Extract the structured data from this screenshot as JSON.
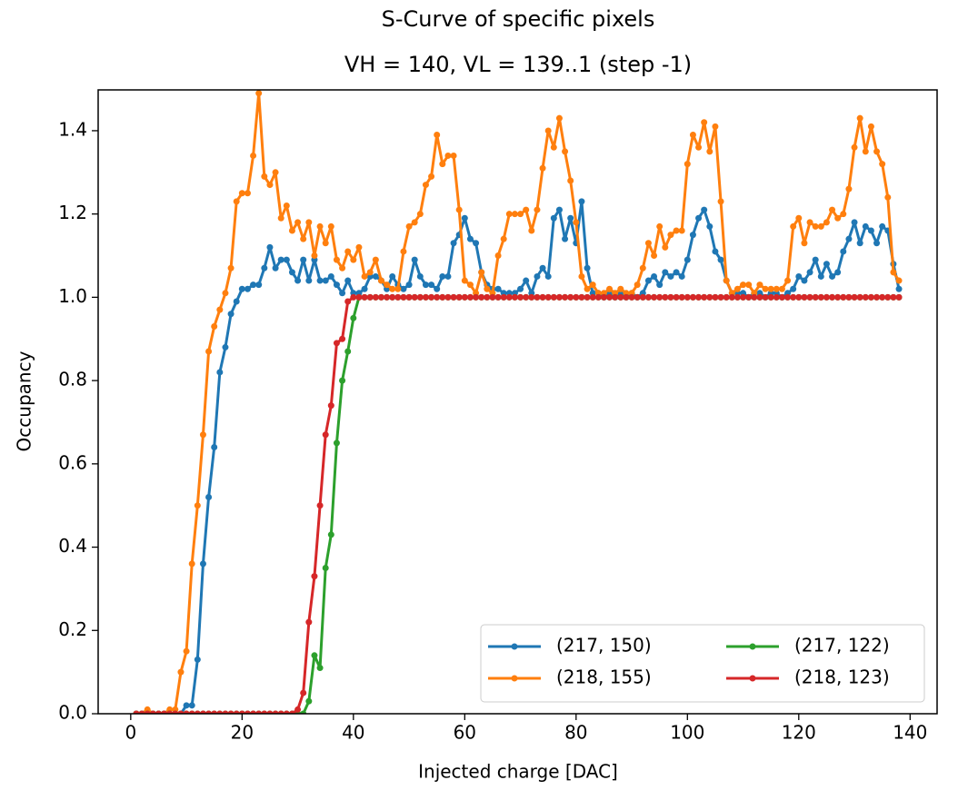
{
  "chart_data": {
    "type": "line",
    "title": "S-Curve of specific pixels",
    "subtitle": "VH = 140, VL = 139..1 (step -1)",
    "x_label": "Injected charge [DAC]",
    "y_label": "Occupancy",
    "x": [
      1,
      2,
      3,
      4,
      5,
      6,
      7,
      8,
      9,
      10,
      11,
      12,
      13,
      14,
      15,
      16,
      17,
      18,
      19,
      20,
      21,
      22,
      23,
      24,
      25,
      26,
      27,
      28,
      29,
      30,
      31,
      32,
      33,
      34,
      35,
      36,
      37,
      38,
      39,
      40,
      41,
      42,
      43,
      44,
      45,
      46,
      47,
      48,
      49,
      50,
      51,
      52,
      53,
      54,
      55,
      56,
      57,
      58,
      59,
      60,
      61,
      62,
      63,
      64,
      65,
      66,
      67,
      68,
      69,
      70,
      71,
      72,
      73,
      74,
      75,
      76,
      77,
      78,
      79,
      80,
      81,
      82,
      83,
      84,
      85,
      86,
      87,
      88,
      89,
      90,
      91,
      92,
      93,
      94,
      95,
      96,
      97,
      98,
      99,
      100,
      101,
      102,
      103,
      104,
      105,
      106,
      107,
      108,
      109,
      110,
      111,
      112,
      113,
      114,
      115,
      116,
      117,
      118,
      119,
      120,
      121,
      122,
      123,
      124,
      125,
      126,
      127,
      128,
      129,
      130,
      131,
      132,
      133,
      134,
      135,
      136,
      137,
      138
    ],
    "series": [
      {
        "name": "(217, 150)",
        "color": "#1f77b4",
        "values": [
          0,
          0,
          0,
          0,
          0,
          0,
          0,
          0,
          0,
          0.02,
          0.02,
          0.13,
          0.36,
          0.52,
          0.64,
          0.82,
          0.88,
          0.96,
          0.99,
          1.02,
          1.02,
          1.03,
          1.03,
          1.07,
          1.12,
          1.07,
          1.09,
          1.09,
          1.06,
          1.04,
          1.09,
          1.04,
          1.09,
          1.04,
          1.04,
          1.05,
          1.03,
          1.01,
          1.04,
          1.01,
          1.01,
          1.02,
          1.05,
          1.05,
          1.04,
          1.02,
          1.05,
          1.03,
          1.02,
          1.03,
          1.09,
          1.05,
          1.03,
          1.03,
          1.02,
          1.05,
          1.05,
          1.13,
          1.15,
          1.19,
          1.14,
          1.13,
          1.06,
          1.03,
          1.02,
          1.02,
          1.01,
          1.01,
          1.01,
          1.02,
          1.04,
          1.01,
          1.05,
          1.07,
          1.05,
          1.19,
          1.21,
          1.14,
          1.19,
          1.13,
          1.23,
          1.07,
          1.01,
          1.01,
          1,
          1.01,
          1,
          1.01,
          1,
          1.01,
          1,
          1.01,
          1.04,
          1.05,
          1.03,
          1.06,
          1.05,
          1.06,
          1.05,
          1.09,
          1.15,
          1.19,
          1.21,
          1.17,
          1.11,
          1.09,
          1.04,
          1.01,
          1.01,
          1.01,
          1,
          1.01,
          1.01,
          1,
          1.01,
          1.01,
          1,
          1.01,
          1.02,
          1.05,
          1.04,
          1.06,
          1.09,
          1.05,
          1.08,
          1.05,
          1.06,
          1.11,
          1.14,
          1.18,
          1.13,
          1.17,
          1.16,
          1.13,
          1.17,
          1.16,
          1.08,
          1.02
        ]
      },
      {
        "name": "(218, 155)",
        "color": "#ff7f0e",
        "values": [
          0,
          0,
          0.01,
          0,
          0,
          0,
          0.01,
          0.01,
          0.1,
          0.15,
          0.36,
          0.5,
          0.67,
          0.87,
          0.93,
          0.97,
          1.01,
          1.07,
          1.23,
          1.25,
          1.25,
          1.34,
          1.49,
          1.29,
          1.27,
          1.3,
          1.19,
          1.22,
          1.16,
          1.18,
          1.14,
          1.18,
          1.1,
          1.17,
          1.13,
          1.17,
          1.09,
          1.07,
          1.11,
          1.09,
          1.12,
          1.05,
          1.06,
          1.09,
          1.04,
          1.03,
          1.02,
          1.02,
          1.11,
          1.17,
          1.18,
          1.2,
          1.27,
          1.29,
          1.39,
          1.32,
          1.34,
          1.34,
          1.21,
          1.04,
          1.03,
          1.01,
          1.06,
          1.02,
          1.01,
          1.1,
          1.14,
          1.2,
          1.2,
          1.2,
          1.21,
          1.16,
          1.21,
          1.31,
          1.4,
          1.36,
          1.43,
          1.35,
          1.28,
          1.18,
          1.05,
          1.02,
          1.03,
          1.01,
          1.01,
          1.02,
          1.01,
          1.02,
          1.01,
          1.01,
          1.03,
          1.07,
          1.13,
          1.1,
          1.17,
          1.12,
          1.15,
          1.16,
          1.16,
          1.32,
          1.39,
          1.36,
          1.42,
          1.35,
          1.41,
          1.23,
          1.04,
          1.01,
          1.02,
          1.03,
          1.03,
          1.01,
          1.03,
          1.02,
          1.02,
          1.02,
          1.02,
          1.04,
          1.17,
          1.19,
          1.13,
          1.18,
          1.17,
          1.17,
          1.18,
          1.21,
          1.19,
          1.2,
          1.26,
          1.36,
          1.43,
          1.35,
          1.41,
          1.35,
          1.32,
          1.24,
          1.06,
          1.04
        ]
      },
      {
        "name": "(217, 122)",
        "color": "#2ca02c",
        "values": [
          0,
          0,
          0,
          0,
          0,
          0,
          0,
          0,
          0,
          0,
          0,
          0,
          0,
          0,
          0,
          0,
          0,
          0,
          0,
          0,
          0,
          0,
          0,
          0,
          0,
          0,
          0,
          0,
          0,
          0,
          0,
          0.03,
          0.14,
          0.11,
          0.35,
          0.43,
          0.65,
          0.8,
          0.87,
          0.95,
          1,
          1,
          1,
          1,
          1,
          1,
          1,
          1,
          1,
          1,
          1,
          1,
          1,
          1,
          1,
          1,
          1,
          1,
          1,
          1,
          1,
          1,
          1,
          1,
          1,
          1,
          1,
          1,
          1,
          1,
          1,
          1,
          1,
          1,
          1,
          1,
          1,
          1,
          1,
          1,
          1,
          1,
          1,
          1,
          1,
          1,
          1,
          1,
          1,
          1,
          1,
          1,
          1,
          1,
          1,
          1,
          1,
          1,
          1,
          1,
          1,
          1,
          1,
          1,
          1,
          1,
          1,
          1,
          1,
          1,
          1,
          1,
          1,
          1,
          1,
          1,
          1,
          1,
          1,
          1,
          1,
          1,
          1,
          1,
          1,
          1,
          1,
          1,
          1,
          1,
          1,
          1,
          1,
          1,
          1,
          1,
          1,
          1
        ]
      },
      {
        "name": "(218, 123)",
        "color": "#d62728",
        "values": [
          0,
          0,
          0,
          0,
          0,
          0,
          0,
          0,
          0,
          0,
          0,
          0,
          0,
          0,
          0,
          0,
          0,
          0,
          0,
          0,
          0,
          0,
          0,
          0,
          0,
          0,
          0,
          0,
          0,
          0.01,
          0.05,
          0.22,
          0.33,
          0.5,
          0.67,
          0.74,
          0.89,
          0.9,
          0.99,
          1,
          1,
          1,
          1,
          1,
          1,
          1,
          1,
          1,
          1,
          1,
          1,
          1,
          1,
          1,
          1,
          1,
          1,
          1,
          1,
          1,
          1,
          1,
          1,
          1,
          1,
          1,
          1,
          1,
          1,
          1,
          1,
          1,
          1,
          1,
          1,
          1,
          1,
          1,
          1,
          1,
          1,
          1,
          1,
          1,
          1,
          1,
          1,
          1,
          1,
          1,
          1,
          1,
          1,
          1,
          1,
          1,
          1,
          1,
          1,
          1,
          1,
          1,
          1,
          1,
          1,
          1,
          1,
          1,
          1,
          1,
          1,
          1,
          1,
          1,
          1,
          1,
          1,
          1,
          1,
          1,
          1,
          1,
          1,
          1,
          1,
          1,
          1,
          1,
          1,
          1,
          1,
          1,
          1,
          1,
          1,
          1,
          1,
          1
        ]
      }
    ],
    "xlim": [
      -5.85,
      144.85
    ],
    "ylim": [
      0,
      1.498
    ],
    "xticks": [
      0,
      20,
      40,
      60,
      80,
      100,
      120,
      140
    ],
    "yticks": [
      {
        "value": 0,
        "label": "0.0"
      },
      0.2,
      0.4,
      0.6,
      0.8,
      {
        "value": 1,
        "label": "1.0"
      },
      1.2,
      1.4
    ],
    "legend": "lower right",
    "legend_columns": 2
  }
}
